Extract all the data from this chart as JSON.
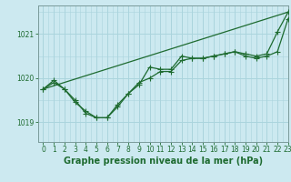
{
  "title": "Graphe pression niveau de la mer (hPa)",
  "background_color": "#cce9f0",
  "grid_color": "#aad4dd",
  "line_color": "#1e6b30",
  "xlim": [
    -0.5,
    23
  ],
  "ylim": [
    1018.55,
    1021.65
  ],
  "yticks": [
    1019,
    1020,
    1021
  ],
  "xticks": [
    0,
    1,
    2,
    3,
    4,
    5,
    6,
    7,
    8,
    9,
    10,
    11,
    12,
    13,
    14,
    15,
    16,
    17,
    18,
    19,
    20,
    21,
    22,
    23
  ],
  "series_main_x": [
    0,
    1,
    2,
    3,
    4,
    5,
    6,
    7,
    8,
    9,
    10,
    11,
    12,
    13,
    14,
    15,
    16,
    17,
    18,
    19,
    20,
    21,
    22,
    23
  ],
  "series_main_y": [
    1019.75,
    1019.95,
    1019.75,
    1019.5,
    1019.2,
    1019.1,
    1019.1,
    1019.4,
    1019.65,
    1019.85,
    1020.25,
    1020.2,
    1020.2,
    1020.5,
    1020.45,
    1020.45,
    1020.5,
    1020.55,
    1020.6,
    1020.55,
    1020.5,
    1020.55,
    1021.05,
    1021.5
  ],
  "series2_x": [
    0,
    1,
    2,
    3,
    4,
    5,
    6,
    7,
    8,
    9,
    10,
    11,
    12,
    13,
    14,
    15,
    16,
    17,
    18,
    19,
    20,
    21,
    22,
    23
  ],
  "series2_y": [
    1019.75,
    1019.9,
    1019.75,
    1019.45,
    1019.25,
    1019.1,
    1019.1,
    1019.35,
    1019.65,
    1019.9,
    1020.0,
    1020.15,
    1020.15,
    1020.4,
    1020.45,
    1020.45,
    1020.5,
    1020.55,
    1020.6,
    1020.5,
    1020.45,
    1020.5,
    1020.6,
    1021.35
  ],
  "trend_x": [
    0,
    23
  ],
  "trend_y": [
    1019.75,
    1021.5
  ],
  "tick_fontsize": 5.5,
  "label_fontsize": 7.0,
  "marker_size": 2.0,
  "line_width": 0.9
}
